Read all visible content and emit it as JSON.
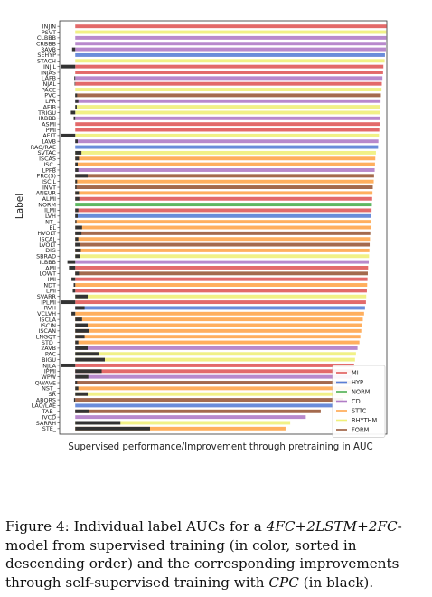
{
  "chart_data": {
    "type": "bar",
    "orientation": "horizontal",
    "ylabel": "Label",
    "xlabel": "Supervised performance/Improvement through pretraining in AUC",
    "xlim": [
      -0.05,
      1.0
    ],
    "grid": false,
    "legend_position": "lower-right",
    "legend": [
      {
        "name": "MI",
        "color": "#e05a5a"
      },
      {
        "name": "HYP",
        "color": "#5a7fd6"
      },
      {
        "name": "NORM",
        "color": "#4caf50"
      },
      {
        "name": "CD",
        "color": "#b07cc6"
      },
      {
        "name": "STTC",
        "color": "#ffa64d"
      },
      {
        "name": "RHYTHM",
        "color": "#f0f07a"
      },
      {
        "name": "FORM",
        "color": "#9a5a3a"
      }
    ],
    "categories": [
      "INJIN",
      "PSVT",
      "CLBBB",
      "CRBBB",
      "3AVB",
      "SEHYP",
      "STACH",
      "INJIL",
      "INJAS",
      "LAFB",
      "INJAL",
      "PACE",
      "PVC",
      "LPR",
      "AFIB",
      "TRIGU",
      "IRBBB",
      "ASMI",
      "PMI",
      "AFLT",
      "1AVB",
      "RAO/RAE",
      "SVTAC",
      "ISCAS",
      "ISC_",
      "LPFB",
      "PRC(S)",
      "ISCIL",
      "INVT",
      "ANEUR",
      "ALMI",
      "NORM",
      "ILMI",
      "LVH",
      "NT_",
      "EL",
      "HVOLT",
      "ISCAL",
      "LVOLT",
      "DIG",
      "SBRAD",
      "ILBBB",
      "AMI",
      "LOWT",
      "IMI",
      "NDT",
      "LMI",
      "SVARR",
      "IPLMI",
      "RVH",
      "VCLVH",
      "ISCLA",
      "ISCIN",
      "ISCAN",
      "LNGQT",
      "STD_",
      "2AVB",
      "PAC",
      "BIGU",
      "INJLA",
      "IPMI",
      "WPW",
      "QWAVE",
      "NST_",
      "SR",
      "ABQRS",
      "LAO/LAE",
      "TAB_",
      "IVCD",
      "SARRH",
      "STE_"
    ],
    "series": [
      {
        "name": "supervised",
        "values": [
          0.999,
          0.998,
          0.998,
          0.997,
          0.997,
          0.994,
          0.993,
          0.989,
          0.988,
          0.986,
          0.984,
          0.983,
          0.981,
          0.98,
          0.979,
          0.979,
          0.978,
          0.977,
          0.976,
          0.975,
          0.973,
          0.972,
          0.965,
          0.963,
          0.962,
          0.961,
          0.959,
          0.958,
          0.955,
          0.954,
          0.953,
          0.952,
          0.951,
          0.95,
          0.949,
          0.948,
          0.947,
          0.946,
          0.945,
          0.944,
          0.943,
          0.942,
          0.94,
          0.939,
          0.938,
          0.937,
          0.936,
          0.934,
          0.933,
          0.93,
          0.927,
          0.923,
          0.92,
          0.918,
          0.915,
          0.912,
          0.906,
          0.901,
          0.898,
          0.895,
          0.893,
          0.89,
          0.887,
          0.885,
          0.878,
          0.86,
          0.825,
          0.788,
          0.74,
          0.69,
          0.675
        ],
        "groups": [
          "MI",
          "RHYTHM",
          "CD",
          "CD",
          "CD",
          "HYP",
          "RHYTHM",
          "MI",
          "MI",
          "CD",
          "MI",
          "RHYTHM",
          "FORM",
          "CD",
          "RHYTHM",
          "RHYTHM",
          "CD",
          "MI",
          "MI",
          "RHYTHM",
          "CD",
          "HYP",
          "RHYTHM",
          "STTC",
          "STTC",
          "CD",
          "FORM",
          "STTC",
          "FORM",
          "STTC",
          "MI",
          "NORM",
          "MI",
          "HYP",
          "STTC",
          "STTC",
          "FORM",
          "STTC",
          "FORM",
          "STTC",
          "RHYTHM",
          "CD",
          "MI",
          "FORM",
          "MI",
          "STTC",
          "MI",
          "RHYTHM",
          "MI",
          "HYP",
          "STTC",
          "STTC",
          "STTC",
          "STTC",
          "STTC",
          "STTC",
          "CD",
          "RHYTHM",
          "RHYTHM",
          "MI",
          "MI",
          "CD",
          "FORM",
          "STTC",
          "RHYTHM",
          "FORM",
          "HYP",
          "FORM",
          "CD",
          "RHYTHM",
          "STTC"
        ]
      },
      {
        "name": "improvement",
        "values": [
          0.0,
          0.0,
          0.0,
          0.0,
          -0.01,
          0.0,
          0.0,
          -0.045,
          0.0,
          -0.003,
          -0.002,
          0.0,
          0.006,
          0.01,
          0.005,
          -0.014,
          -0.005,
          0.0,
          0.0,
          -0.045,
          0.008,
          0.0,
          0.02,
          0.012,
          0.008,
          0.01,
          0.04,
          0.006,
          0.004,
          0.012,
          0.013,
          0.0,
          0.01,
          0.008,
          0.004,
          0.022,
          0.02,
          0.01,
          0.014,
          0.018,
          0.015,
          -0.025,
          -0.02,
          0.012,
          -0.012,
          -0.005,
          -0.008,
          0.04,
          -0.045,
          0.03,
          -0.012,
          0.022,
          0.04,
          0.045,
          0.03,
          0.01,
          0.04,
          0.075,
          0.095,
          -0.045,
          0.085,
          0.042,
          0.006,
          0.01,
          0.04,
          -0.004,
          0.0,
          0.045,
          0.0,
          0.145,
          0.24
        ]
      }
    ]
  },
  "caption": {
    "figure_label": "Figure 4:",
    "text_1": " Individual label AUCs for a ",
    "model_name": "4FC+2LSTM+2FC",
    "text_2": "-model from supervised training (in color, sorted in descending order) and the corresponding improvements through self-supervised training with ",
    "method_name": "CPC",
    "text_3": " (in black)."
  }
}
